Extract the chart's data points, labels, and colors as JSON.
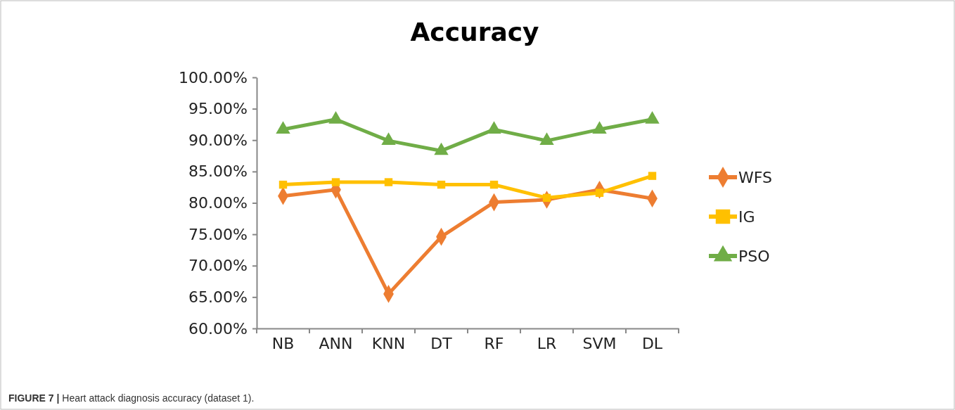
{
  "chart_data": {
    "type": "line",
    "title": "Accuracy",
    "categories": [
      "NB",
      "ANN",
      "KNN",
      "DT",
      "RF",
      "LR",
      "SVM",
      "DL"
    ],
    "series": [
      {
        "name": "WFS",
        "color": "#ed7d31",
        "marker": "diamond",
        "values": [
          81.1,
          82.1,
          65.5,
          74.6,
          80.1,
          80.5,
          82.1,
          80.7
        ]
      },
      {
        "name": "IG",
        "color": "#ffc000",
        "marker": "square",
        "values": [
          82.9,
          83.3,
          83.3,
          82.9,
          82.9,
          80.8,
          81.6,
          84.3
        ]
      },
      {
        "name": "PSO",
        "color": "#70ad47",
        "marker": "triangle",
        "values": [
          91.7,
          93.3,
          89.9,
          88.3,
          91.7,
          89.9,
          91.7,
          93.3
        ]
      }
    ],
    "ylim": [
      60,
      100
    ],
    "yticks": [
      {
        "value": 60,
        "label": "60.00%"
      },
      {
        "value": 65,
        "label": "65.00%"
      },
      {
        "value": 70,
        "label": "70.00%"
      },
      {
        "value": 75,
        "label": "75.00%"
      },
      {
        "value": 80,
        "label": "80.00%"
      },
      {
        "value": 85,
        "label": "85.00%"
      },
      {
        "value": 90,
        "label": "90.00%"
      },
      {
        "value": 95,
        "label": "95.00%"
      },
      {
        "value": 100,
        "label": "100.00%"
      }
    ],
    "grid": false,
    "legend": "right",
    "line_style": "solid",
    "annotations": [
      "FIGURE 7 | Heart attack diagnosis accuracy (dataset 1)."
    ]
  }
}
